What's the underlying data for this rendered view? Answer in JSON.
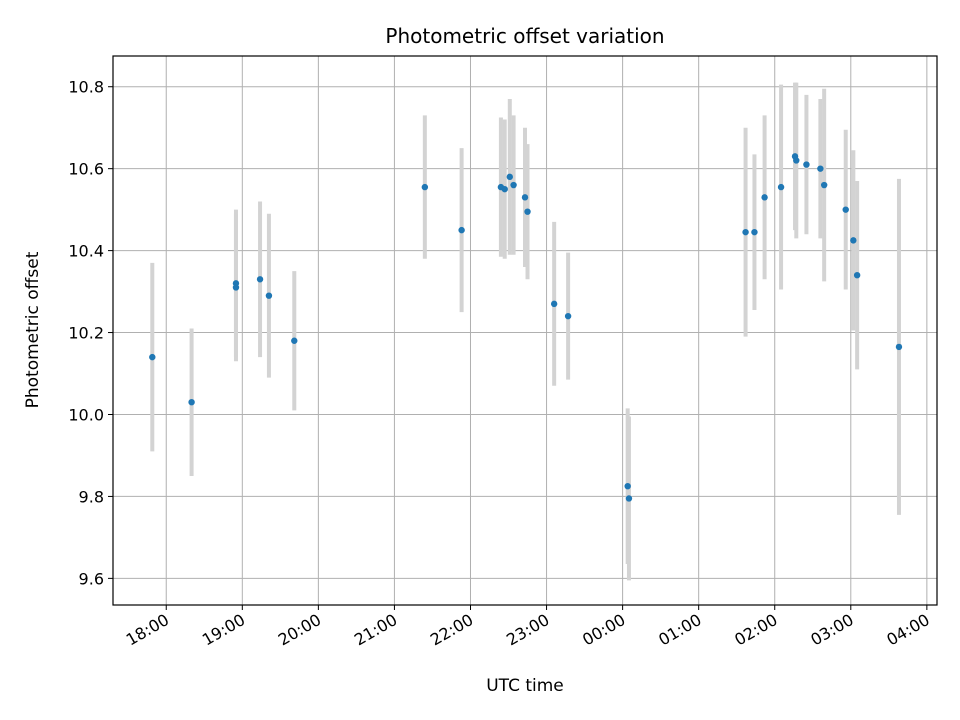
{
  "chart_data": {
    "type": "scatter",
    "title": "Photometric offset variation",
    "xlabel": "UTC time",
    "ylabel": "Photometric offset",
    "x_unit": "UTC time (HH:MM)",
    "xlim": [
      "17:18",
      "04:08"
    ],
    "ylim": [
      9.535,
      10.875
    ],
    "x_ticks": [
      "18:00",
      "19:00",
      "20:00",
      "21:00",
      "22:00",
      "23:00",
      "00:00",
      "01:00",
      "02:00",
      "03:00",
      "04:00"
    ],
    "y_ticks": [
      "9.6",
      "9.8",
      "10.0",
      "10.2",
      "10.4",
      "10.6",
      "10.8"
    ],
    "grid": true,
    "marker_color": "#1f77b4",
    "errorbar_color": "#d3d3d3",
    "points": [
      {
        "x": "17:49",
        "y": 10.14,
        "err": 0.23
      },
      {
        "x": "18:20",
        "y": 10.03,
        "err": 0.18
      },
      {
        "x": "18:55",
        "y": 10.32,
        "err": 0.18
      },
      {
        "x": "18:55",
        "y": 10.31,
        "err": 0.18
      },
      {
        "x": "19:14",
        "y": 10.33,
        "err": 0.19
      },
      {
        "x": "19:21",
        "y": 10.29,
        "err": 0.2
      },
      {
        "x": "19:41",
        "y": 10.18,
        "err": 0.17
      },
      {
        "x": "21:24",
        "y": 10.555,
        "err": 0.175
      },
      {
        "x": "21:53",
        "y": 10.45,
        "err": 0.2
      },
      {
        "x": "22:24",
        "y": 10.555,
        "err": 0.17
      },
      {
        "x": "22:27",
        "y": 10.55,
        "err": 0.17
      },
      {
        "x": "22:31",
        "y": 10.58,
        "err": 0.19
      },
      {
        "x": "22:34",
        "y": 10.56,
        "err": 0.17
      },
      {
        "x": "22:43",
        "y": 10.53,
        "err": 0.17
      },
      {
        "x": "22:45",
        "y": 10.495,
        "err": 0.165
      },
      {
        "x": "23:06",
        "y": 10.27,
        "err": 0.2
      },
      {
        "x": "23:17",
        "y": 10.24,
        "err": 0.155
      },
      {
        "x": "00:04",
        "y": 9.825,
        "err": 0.19
      },
      {
        "x": "00:05",
        "y": 9.795,
        "err": 0.2
      },
      {
        "x": "01:37",
        "y": 10.445,
        "err": 0.255
      },
      {
        "x": "01:44",
        "y": 10.445,
        "err": 0.19
      },
      {
        "x": "01:52",
        "y": 10.53,
        "err": 0.2
      },
      {
        "x": "02:05",
        "y": 10.555,
        "err": 0.25
      },
      {
        "x": "02:16",
        "y": 10.63,
        "err": 0.18
      },
      {
        "x": "02:17",
        "y": 10.62,
        "err": 0.19
      },
      {
        "x": "02:25",
        "y": 10.61,
        "err": 0.17
      },
      {
        "x": "02:36",
        "y": 10.6,
        "err": 0.17
      },
      {
        "x": "02:39",
        "y": 10.56,
        "err": 0.235
      },
      {
        "x": "02:56",
        "y": 10.5,
        "err": 0.195
      },
      {
        "x": "03:02",
        "y": 10.425,
        "err": 0.22
      },
      {
        "x": "03:05",
        "y": 10.34,
        "err": 0.23
      },
      {
        "x": "03:38",
        "y": 10.165,
        "err": 0.41
      }
    ]
  }
}
